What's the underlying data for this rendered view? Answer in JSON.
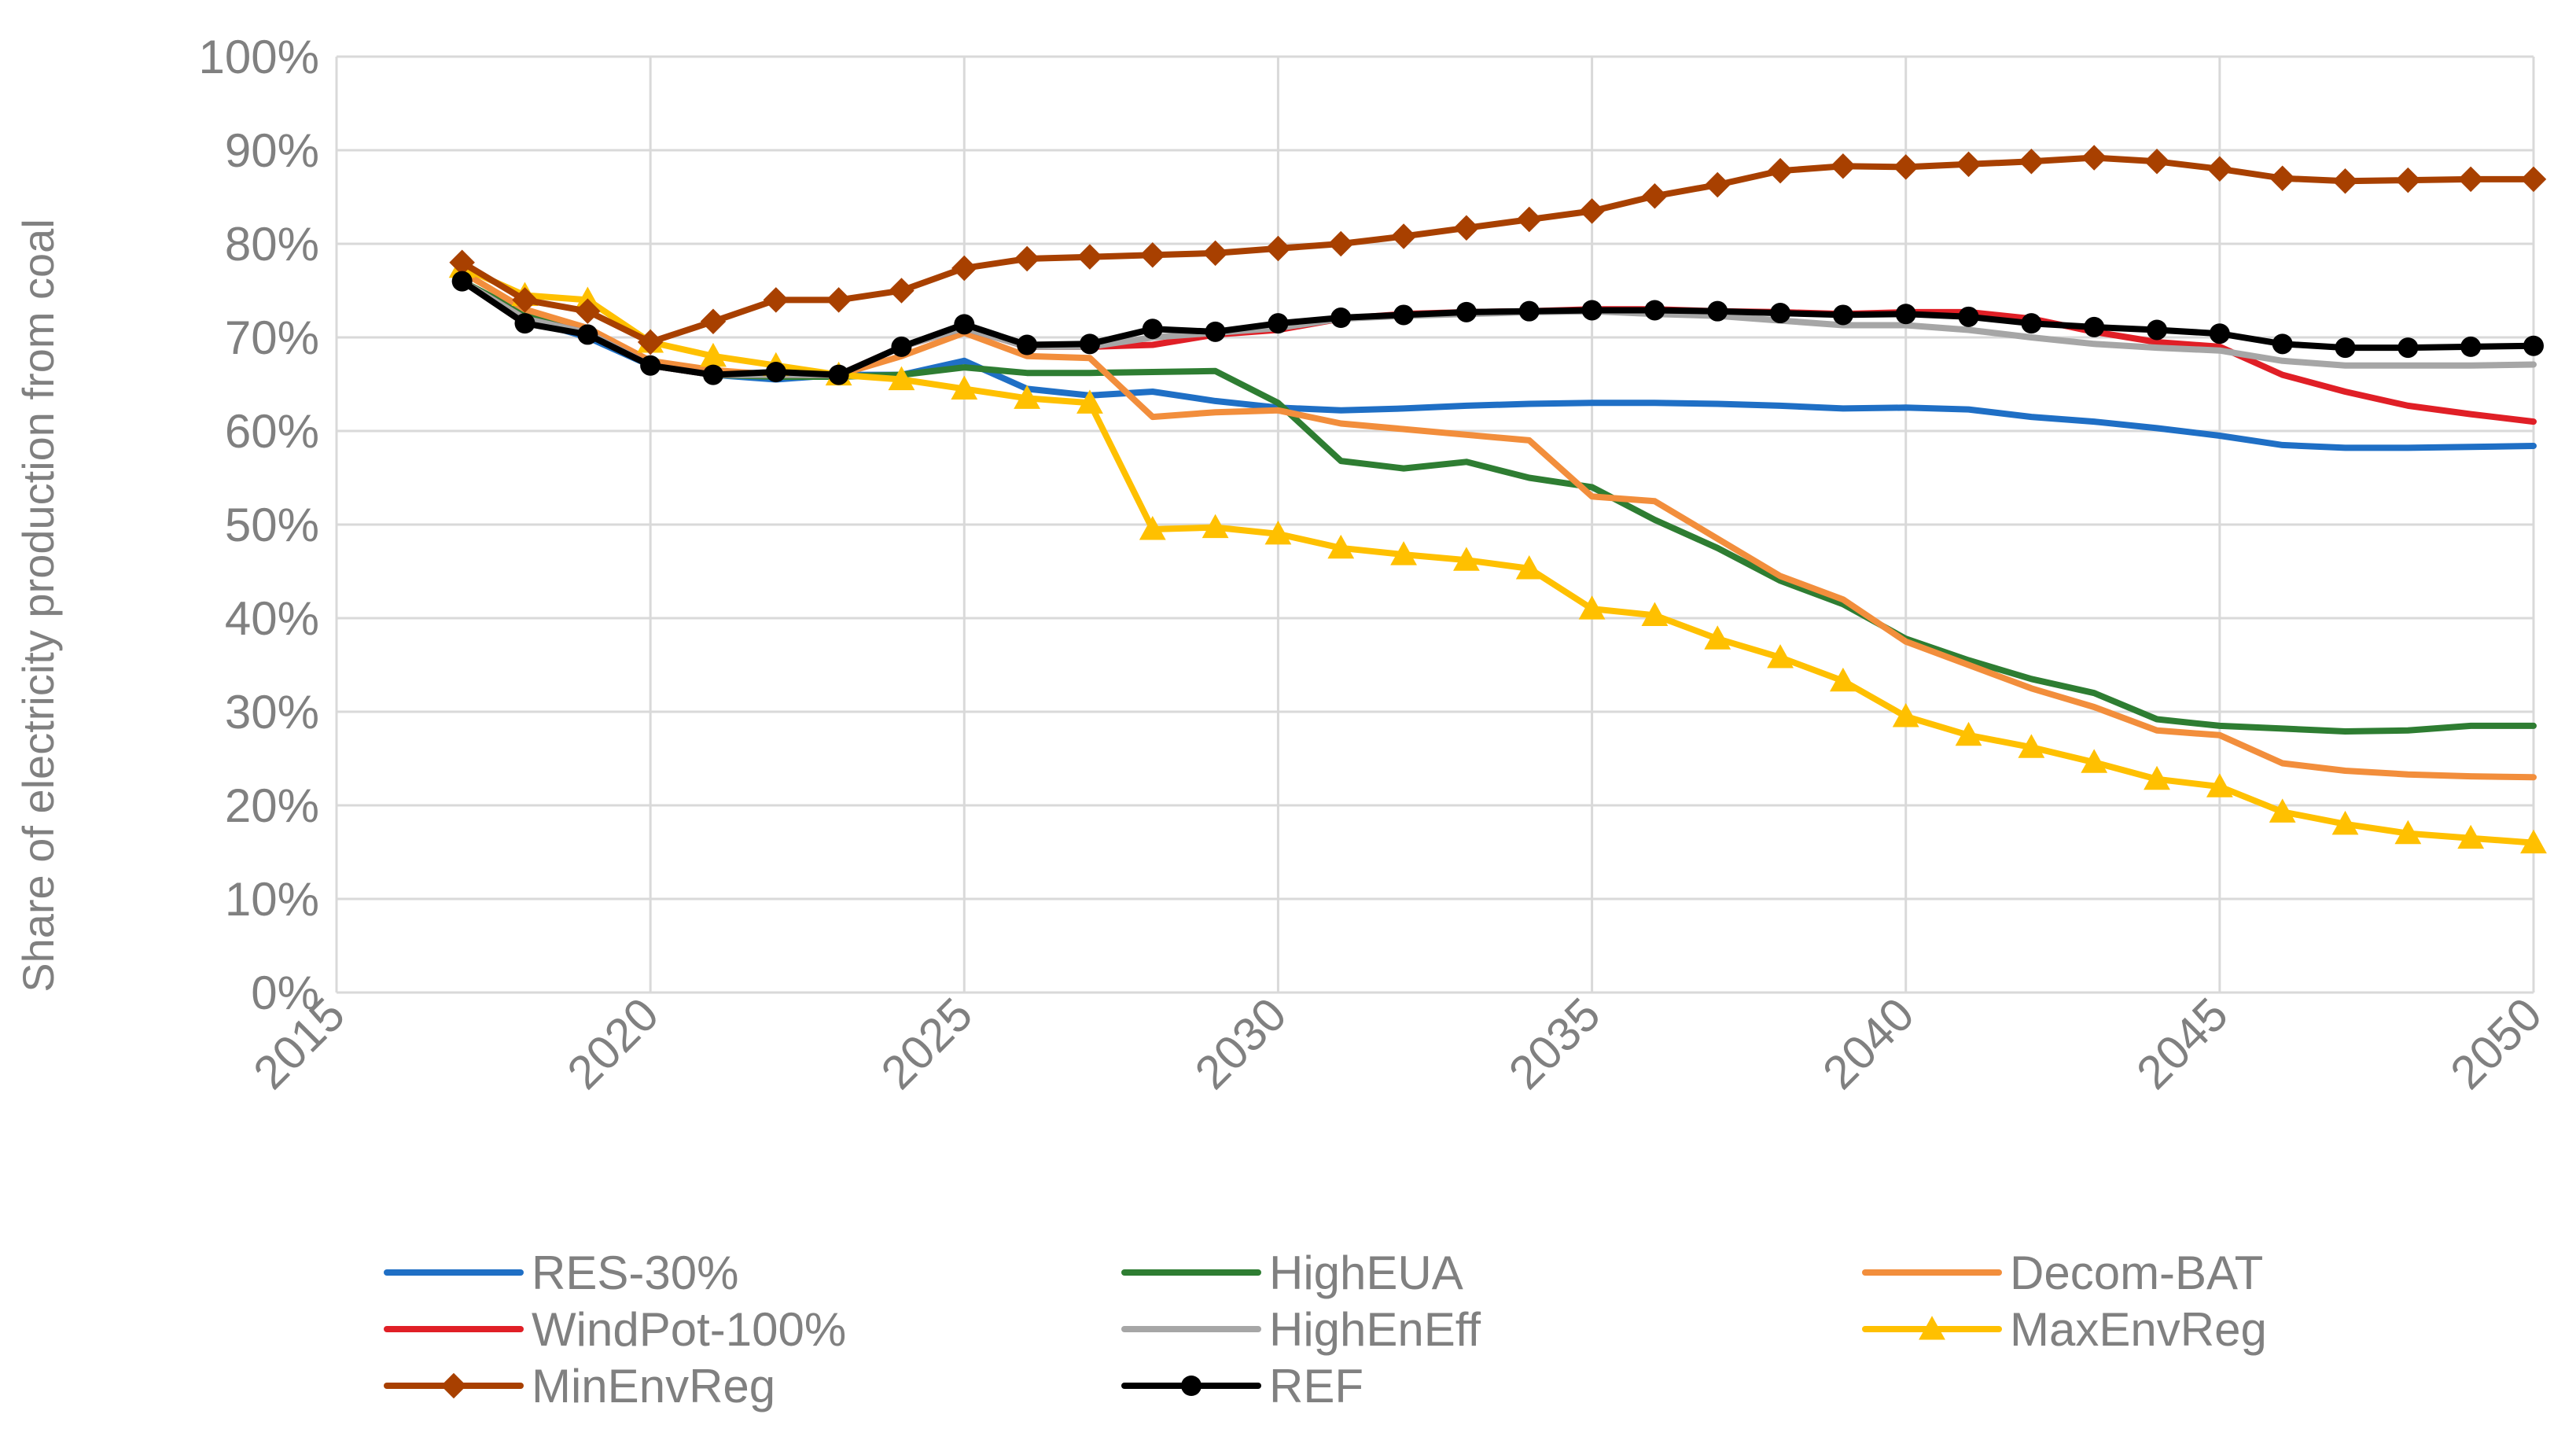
{
  "chart_data": {
    "type": "line",
    "title": "",
    "xlabel": "",
    "ylabel": "Share of electricity production from coal",
    "xlim": [
      2015,
      2050
    ],
    "ylim": [
      0,
      100
    ],
    "x_ticks": [
      "2015",
      "2020",
      "2025",
      "2030",
      "2035",
      "2040",
      "2045",
      "2050"
    ],
    "y_ticks": [
      "0%",
      "10%",
      "20%",
      "30%",
      "40%",
      "50%",
      "60%",
      "70%",
      "80%",
      "90%",
      "100%"
    ],
    "grid": true,
    "legend_position": "bottom",
    "x": [
      2017,
      2018,
      2019,
      2020,
      2021,
      2022,
      2023,
      2024,
      2025,
      2026,
      2027,
      2028,
      2029,
      2030,
      2031,
      2032,
      2033,
      2034,
      2035,
      2036,
      2037,
      2038,
      2039,
      2040,
      2041,
      2042,
      2043,
      2044,
      2045,
      2046,
      2047,
      2048,
      2049,
      2050
    ],
    "series": [
      {
        "name": "RES-30%",
        "color": "#1f6fc5",
        "marker": "none",
        "values": [
          76.0,
          72.0,
          70.0,
          67.0,
          66.0,
          65.5,
          66.0,
          66.0,
          67.5,
          64.5,
          63.8,
          64.2,
          63.2,
          62.5,
          62.2,
          62.4,
          62.7,
          62.9,
          63.0,
          63.0,
          62.9,
          62.7,
          62.4,
          62.5,
          62.3,
          61.5,
          61.0,
          60.3,
          59.5,
          58.5,
          58.2,
          58.2,
          58.3,
          58.4
        ]
      },
      {
        "name": "HighEUA",
        "color": "#2e7d32",
        "marker": "none",
        "values": [
          76.0,
          72.5,
          70.5,
          67.0,
          66.0,
          65.8,
          65.8,
          66.0,
          66.8,
          66.2,
          66.2,
          66.3,
          66.4,
          63.0,
          56.8,
          56.0,
          56.7,
          55.0,
          54.0,
          50.5,
          47.5,
          44.0,
          41.5,
          37.8,
          35.5,
          33.5,
          32.0,
          29.2,
          28.5,
          28.2,
          27.9,
          28.0,
          28.5,
          28.5
        ]
      },
      {
        "name": "Decom-BAT",
        "color": "#f28e3c",
        "marker": "none",
        "values": [
          77.0,
          73.0,
          71.0,
          67.5,
          66.5,
          66.0,
          66.0,
          68.0,
          70.5,
          68.0,
          67.8,
          61.5,
          62.0,
          62.2,
          60.8,
          60.2,
          59.6,
          59.0,
          53.0,
          52.5,
          48.5,
          44.5,
          42.0,
          37.5,
          35.0,
          32.5,
          30.5,
          28.0,
          27.5,
          24.5,
          23.7,
          23.3,
          23.1,
          23.0
        ]
      },
      {
        "name": "WindPot-100%",
        "color": "#e01f26",
        "marker": "none",
        "values": [
          76.0,
          72.0,
          70.5,
          67.0,
          66.0,
          66.0,
          66.0,
          69.0,
          71.0,
          69.0,
          69.0,
          69.2,
          70.3,
          70.8,
          72.0,
          72.5,
          72.7,
          72.8,
          73.0,
          73.0,
          72.8,
          72.7,
          72.5,
          72.7,
          72.7,
          72.0,
          70.6,
          69.5,
          69.0,
          66.0,
          64.2,
          62.7,
          61.8,
          61.0
        ]
      },
      {
        "name": "HighEnEff",
        "color": "#a6a6a6",
        "marker": "none",
        "values": [
          76.0,
          72.0,
          70.5,
          67.0,
          66.0,
          66.0,
          66.0,
          69.0,
          71.0,
          69.0,
          69.0,
          70.0,
          70.5,
          71.0,
          72.0,
          72.3,
          72.5,
          72.7,
          72.8,
          72.5,
          72.3,
          71.8,
          71.3,
          71.3,
          70.8,
          70.0,
          69.3,
          68.9,
          68.6,
          67.5,
          67.0,
          67.0,
          67.0,
          67.1
        ]
      },
      {
        "name": "MaxEnvReg",
        "color": "#ffc000",
        "marker": "triangle",
        "values": [
          77.5,
          74.5,
          74.0,
          69.5,
          68.0,
          67.0,
          66.0,
          65.5,
          64.5,
          63.5,
          63.0,
          49.5,
          49.7,
          49.0,
          47.5,
          46.8,
          46.2,
          45.3,
          41.0,
          40.3,
          37.8,
          35.8,
          33.3,
          29.5,
          27.5,
          26.2,
          24.6,
          22.8,
          22.0,
          19.3,
          18.0,
          17.0,
          16.5,
          16.0
        ]
      },
      {
        "name": "MinEnvReg",
        "color": "#a84000",
        "marker": "diamond",
        "values": [
          78.0,
          74.0,
          72.8,
          69.5,
          71.7,
          74.0,
          74.0,
          75.0,
          77.4,
          78.4,
          78.6,
          78.8,
          79.0,
          79.5,
          80.0,
          80.8,
          81.7,
          82.6,
          83.5,
          85.1,
          86.3,
          87.8,
          88.3,
          88.2,
          88.5,
          88.8,
          89.2,
          88.8,
          88.0,
          87.0,
          86.7,
          86.8,
          86.9,
          86.9
        ]
      },
      {
        "name": "REF",
        "color": "#000000",
        "marker": "circle",
        "values": [
          76.0,
          71.5,
          70.3,
          67.0,
          66.0,
          66.3,
          66.0,
          69.0,
          71.4,
          69.2,
          69.3,
          70.9,
          70.6,
          71.5,
          72.1,
          72.4,
          72.7,
          72.8,
          72.9,
          72.9,
          72.8,
          72.6,
          72.4,
          72.5,
          72.2,
          71.5,
          71.1,
          70.8,
          70.4,
          69.3,
          68.9,
          68.9,
          69.0,
          69.1
        ]
      }
    ]
  }
}
